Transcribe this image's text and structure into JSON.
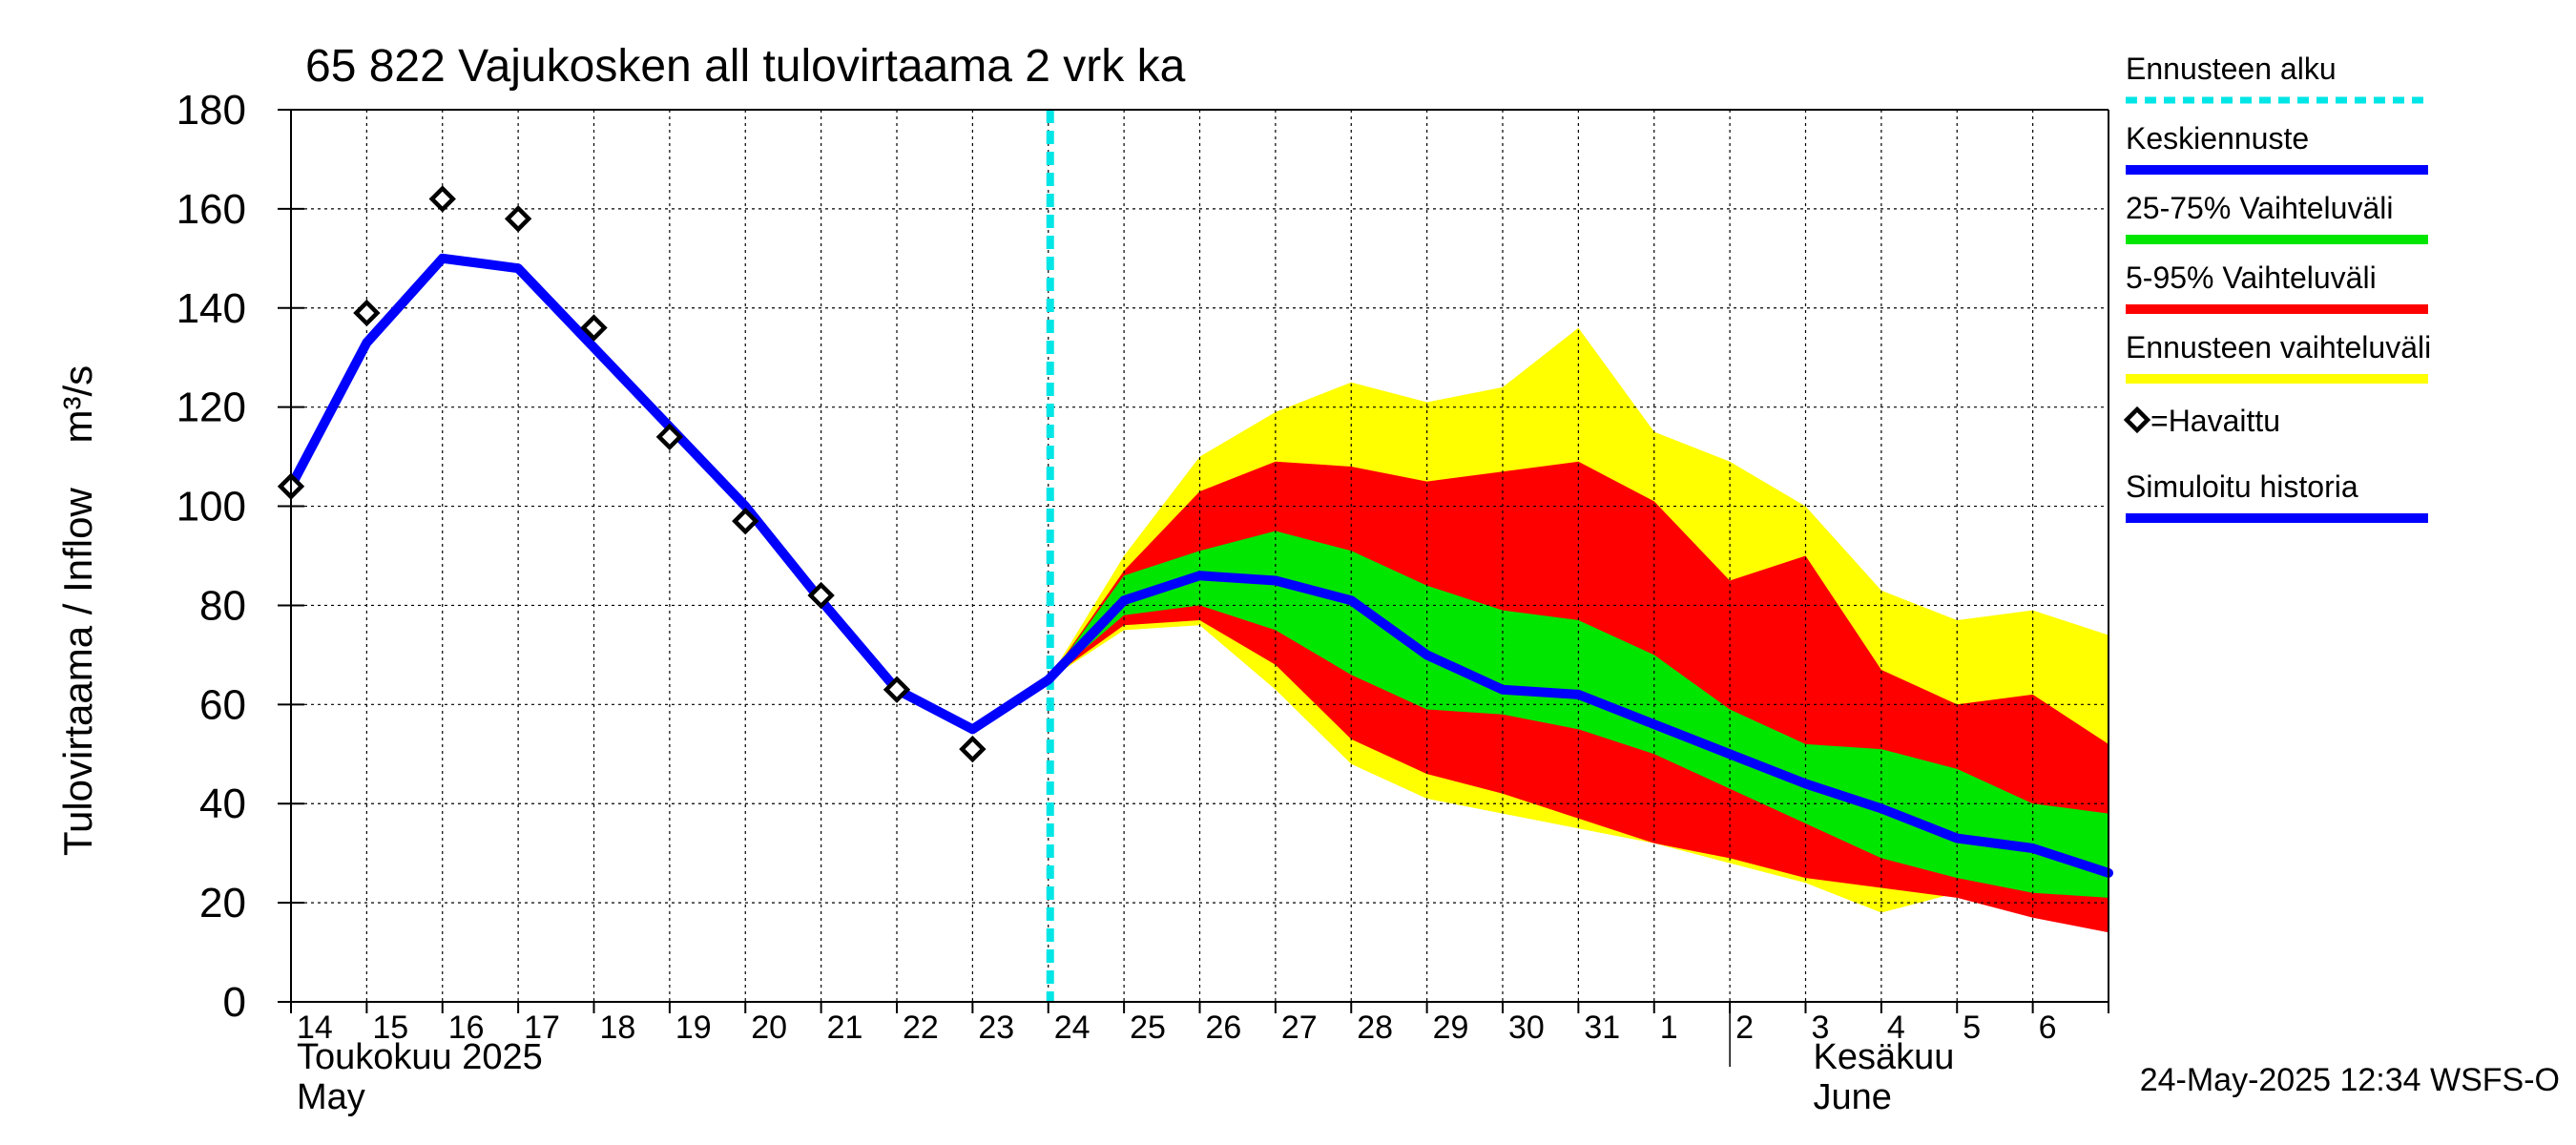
{
  "chart_data": {
    "type": "area",
    "title": "65 822 Vajukosken all tulovirtaama 2 vrk ka",
    "ylabel": "Tulovirtaama / Inflow    m³/s",
    "ylim": [
      0,
      180
    ],
    "yticks": [
      0,
      20,
      40,
      60,
      80,
      100,
      120,
      140,
      160,
      180
    ],
    "x_start": "2025-05-14",
    "x_end": "2025-06-07",
    "day_labels": [
      "14",
      "15",
      "16",
      "17",
      "18",
      "19",
      "20",
      "21",
      "22",
      "23",
      "24",
      "25",
      "26",
      "27",
      "28",
      "29",
      "30",
      "31",
      "1",
      "2",
      "3",
      "4",
      "5",
      "6"
    ],
    "month_labels": [
      {
        "fi": "Toukokuu  2025",
        "en": "May",
        "start_index": 0
      },
      {
        "fi": "Kesäkuu",
        "en": "June",
        "start_index": 19
      }
    ],
    "forecast_start": "2025-05-24",
    "grid": true,
    "timestamp": "24-May-2025 12:34 WSFS-O",
    "legend": {
      "placement": "right",
      "items": [
        {
          "label": "Ennusteen alku",
          "color": "#00e5e5",
          "style": "dashed"
        },
        {
          "label": "Keskiennuste",
          "color": "#0000ff",
          "style": "solid"
        },
        {
          "label": "25-75% Vaihteluväli",
          "color": "#00e600",
          "style": "solid"
        },
        {
          "label": "5-95% Vaihteluväli",
          "color": "#ff0000",
          "style": "solid"
        },
        {
          "label": "Ennusteen vaihteluväli",
          "color": "#ffff00",
          "style": "solid"
        },
        {
          "label": "=Havaittu",
          "color": "#000000",
          "style": "marker"
        },
        {
          "label": "Simuloitu historia",
          "color": "#0000ff",
          "style": "solid"
        }
      ]
    },
    "series": {
      "observed": {
        "x": [
          "2025-05-14",
          "2025-05-15",
          "2025-05-16",
          "2025-05-17",
          "2025-05-18",
          "2025-05-19",
          "2025-05-20",
          "2025-05-21",
          "2025-05-22",
          "2025-05-23"
        ],
        "y": [
          104,
          139,
          162,
          158,
          136,
          114,
          97,
          82,
          63,
          51
        ]
      },
      "simulated_history": {
        "x": [
          "2025-05-14",
          "2025-05-15",
          "2025-05-16",
          "2025-05-17",
          "2025-05-18",
          "2025-05-19",
          "2025-05-20",
          "2025-05-21",
          "2025-05-22",
          "2025-05-23",
          "2025-05-24"
        ],
        "y": [
          104,
          133,
          150,
          148,
          132,
          116,
          100,
          81,
          63,
          55,
          65
        ]
      },
      "forecast_x": [
        "2025-05-24",
        "2025-05-25",
        "2025-05-26",
        "2025-05-27",
        "2025-05-28",
        "2025-05-29",
        "2025-05-30",
        "2025-05-31",
        "2025-06-01",
        "2025-06-02",
        "2025-06-03",
        "2025-06-04",
        "2025-06-05",
        "2025-06-06",
        "2025-06-07"
      ],
      "median": [
        65,
        81,
        86,
        85,
        81,
        70,
        63,
        62,
        56,
        50,
        44,
        39,
        33,
        31,
        26
      ],
      "p25_75": {
        "upper": [
          65,
          86,
          91,
          95,
          91,
          84,
          79,
          77,
          70,
          59,
          52,
          51,
          47,
          40,
          38
        ],
        "lower": [
          65,
          78,
          80,
          75,
          66,
          59,
          58,
          55,
          50,
          43,
          36,
          29,
          25,
          22,
          21
        ]
      },
      "p5_95": {
        "upper": [
          65,
          87,
          103,
          109,
          108,
          105,
          107,
          109,
          101,
          85,
          90,
          67,
          60,
          62,
          52
        ],
        "lower": [
          65,
          76,
          77,
          68,
          53,
          46,
          42,
          37,
          32,
          29,
          25,
          23,
          21,
          17,
          14
        ]
      },
      "full_range": {
        "upper": [
          65,
          90,
          110,
          119,
          125,
          121,
          124,
          136,
          115,
          109,
          100,
          83,
          77,
          79,
          74
        ],
        "lower": [
          65,
          75,
          76,
          63,
          48,
          41,
          38,
          35,
          32,
          28,
          24,
          18,
          22,
          19,
          17
        ]
      }
    }
  }
}
